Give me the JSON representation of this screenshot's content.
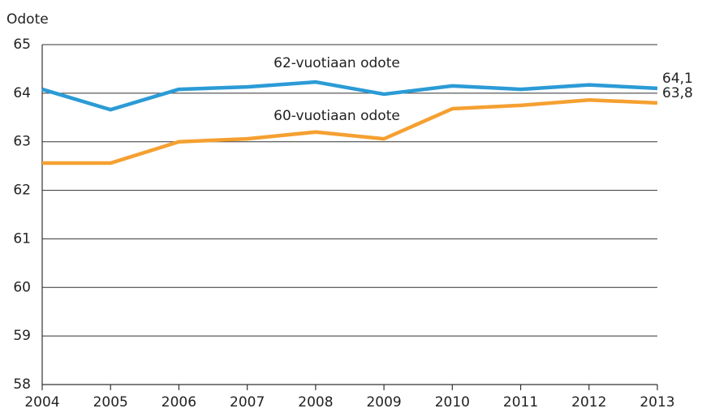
{
  "chart_data": {
    "type": "line",
    "y_label": "Odote",
    "x": [
      2004,
      2005,
      2006,
      2007,
      2008,
      2009,
      2010,
      2011,
      2012,
      2013
    ],
    "xlim": [
      2004,
      2013
    ],
    "xticks": [
      2004,
      2005,
      2006,
      2007,
      2008,
      2009,
      2010,
      2011,
      2012,
      2013
    ],
    "ylim": [
      58,
      65
    ],
    "yticks": [
      58,
      59,
      60,
      61,
      62,
      63,
      64,
      65
    ],
    "grid": true,
    "series": [
      {
        "name": "62-vuotiaan odote",
        "color": "#2b9bd6",
        "values": [
          64.08,
          63.66,
          64.08,
          64.13,
          64.23,
          63.98,
          64.15,
          64.08,
          64.17,
          64.1
        ],
        "value_labels": [
          null,
          null,
          null,
          null,
          null,
          null,
          null,
          null,
          null,
          "64,1"
        ]
      },
      {
        "name": "60-vuotiaan odote",
        "color": "#f5a031",
        "values": [
          62.56,
          62.56,
          63.0,
          63.06,
          63.2,
          63.06,
          63.68,
          63.75,
          63.86,
          63.8
        ],
        "value_labels": [
          null,
          null,
          null,
          null,
          null,
          null,
          null,
          null,
          null,
          "63,8"
        ]
      }
    ]
  }
}
